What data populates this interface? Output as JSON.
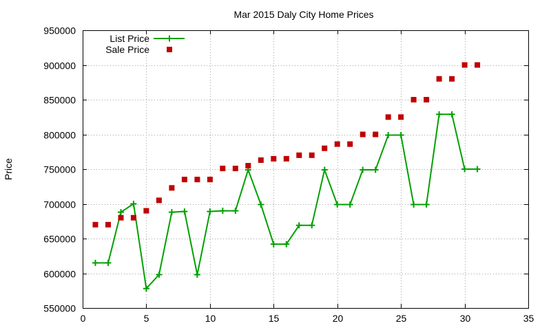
{
  "chart_data": {
    "type": "line",
    "title": "Mar 2015 Daly City Home Prices",
    "xlabel": "",
    "ylabel": "Price",
    "xlim": [
      0,
      35
    ],
    "ylim": [
      550000,
      950000
    ],
    "xticks": [
      0,
      5,
      10,
      15,
      20,
      25,
      30,
      35
    ],
    "yticks": [
      550000,
      600000,
      650000,
      700000,
      750000,
      800000,
      850000,
      900000,
      950000
    ],
    "grid": true,
    "legend_position": "top-left",
    "series": [
      {
        "name": "List Price",
        "style": "line-with-plus-markers",
        "color": "#00a000",
        "x": [
          1,
          2,
          3,
          4,
          5,
          6,
          7,
          8,
          9,
          10,
          11,
          12,
          13,
          14,
          15,
          16,
          17,
          18,
          19,
          20,
          21,
          22,
          23,
          24,
          25,
          26,
          27,
          28,
          29,
          30,
          31
        ],
        "values": [
          615000,
          615000,
          688000,
          700000,
          578000,
          598000,
          688000,
          689000,
          598000,
          689000,
          690000,
          690000,
          749000,
          699000,
          642000,
          642000,
          669000,
          669000,
          749000,
          699000,
          699000,
          749000,
          749000,
          799000,
          799000,
          699000,
          699000,
          829000,
          829000,
          750000,
          750000
        ]
      },
      {
        "name": "Sale Price",
        "style": "square-markers",
        "color": "#c00000",
        "x": [
          1,
          2,
          3,
          4,
          5,
          6,
          7,
          8,
          9,
          10,
          11,
          12,
          13,
          14,
          15,
          16,
          17,
          18,
          19,
          20,
          21,
          22,
          23,
          24,
          25,
          26,
          27,
          28,
          29,
          30,
          31
        ],
        "values": [
          670000,
          670000,
          680000,
          680000,
          690000,
          705000,
          723000,
          735000,
          735000,
          735000,
          751000,
          751000,
          755000,
          763000,
          765000,
          765000,
          770000,
          770000,
          780000,
          786000,
          786000,
          800000,
          800000,
          825000,
          825000,
          850000,
          850000,
          880000,
          880000,
          900000,
          900000
        ]
      }
    ]
  }
}
